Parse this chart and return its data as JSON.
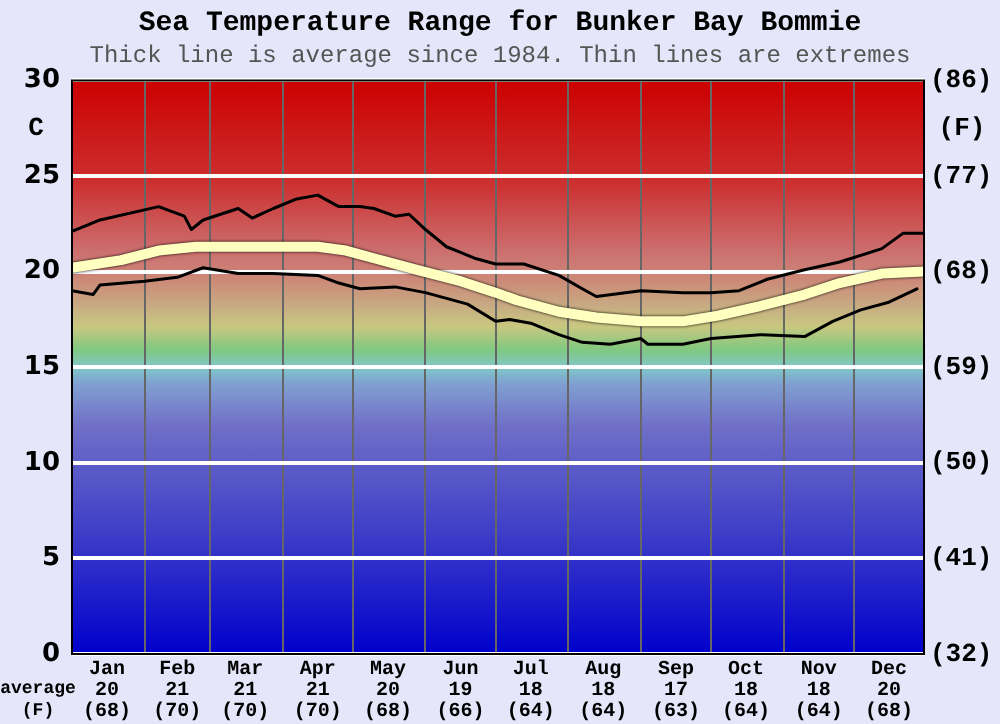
{
  "chart_data": {
    "type": "line",
    "title": "Sea Temperature Range for Bunker Bay Bommie",
    "subtitle": "Thick line is average since 1984. Thin lines are extremes",
    "ylabel": "C",
    "y2label": "(F)",
    "annotations": [
      "average (F)"
    ],
    "xlim": [
      "--01-01",
      "--12-31"
    ],
    "xticks": [
      {
        "value": "--01-01",
        "label": null
      },
      {
        "value": "--01-16",
        "label": "Jan\n20\n(68)"
      },
      {
        "value": "--02-01",
        "label": null
      },
      {
        "value": "--02-15",
        "label": "Feb\n21\n(70)"
      },
      {
        "value": "--03-01",
        "label": null
      },
      {
        "value": "--03-16",
        "label": "Mar\n21\n(70)"
      },
      {
        "value": "--04-01",
        "label": null
      },
      {
        "value": "--04-16",
        "label": "Apr\n21\n(70)"
      },
      {
        "value": "--05-01",
        "label": null
      },
      {
        "value": "--05-16",
        "label": "May\n20\n(68)"
      },
      {
        "value": "--06-01",
        "label": null
      },
      {
        "value": "--06-16",
        "label": "Jun\n19\n(66)"
      },
      {
        "value": "--07-01",
        "label": null
      },
      {
        "value": "--07-16",
        "label": "Jul\n18\n(64)"
      },
      {
        "value": "--08-01",
        "label": null
      },
      {
        "value": "--08-16",
        "label": "Aug\n18\n(64)"
      },
      {
        "value": "--09-01",
        "label": null
      },
      {
        "value": "--09-16",
        "label": "Sep\n17\n(63)"
      },
      {
        "value": "--10-01",
        "label": null
      },
      {
        "value": "--10-16",
        "label": "Oct\n18\n(64)"
      },
      {
        "value": "--11-01",
        "label": null
      },
      {
        "value": "--11-16",
        "label": "Nov\n18\n(64)"
      },
      {
        "value": "--12-01",
        "label": null
      },
      {
        "value": "--12-16",
        "label": "Dec\n20\n(68)"
      },
      {
        "value": "--12-31",
        "label": null
      }
    ],
    "ylim": [
      0,
      30
    ],
    "yticks": [
      0,
      5,
      10,
      15,
      20,
      25,
      30
    ],
    "y2lim": [
      32,
      86
    ],
    "y2ticks": [
      {
        "value": 32,
        "label": "(32)"
      },
      {
        "value": 41,
        "label": "(41)"
      },
      {
        "value": 50,
        "label": "(50)"
      },
      {
        "value": 59,
        "label": "(59)"
      },
      {
        "value": 68,
        "label": "(68)"
      },
      {
        "value": 77,
        "label": "(77)"
      },
      {
        "value": 86,
        "label": "(86)"
      }
    ],
    "grid": true,
    "legend": false,
    "marker": "none",
    "line_style": "solid",
    "series": [
      {
        "color": "#000000",
        "x": [
          "--01-01",
          "--01-13",
          "--02-07",
          "--02-18",
          "--02-21",
          "--02-26",
          "--03-13",
          "--03-19",
          "--03-28",
          "--04-07",
          "--04-16",
          "--04-25",
          "--05-04",
          "--05-10",
          "--05-19",
          "--05-25",
          "--06-01",
          "--06-10",
          "--06-16",
          "--06-22",
          "--07-01",
          "--07-13",
          "--07-28",
          "--08-07",
          "--08-13",
          "--09-01",
          "--09-19",
          "--10-01",
          "--10-13",
          "--10-25",
          "--11-10",
          "--11-25",
          "--12-13",
          "--12-22",
          "--12-31"
        ],
        "values": [
          22.1,
          22.7,
          23.4,
          22.9,
          22.2,
          22.7,
          23.3,
          22.8,
          23.3,
          23.8,
          24.0,
          23.4,
          23.4,
          23.3,
          22.9,
          23.0,
          22.2,
          21.3,
          21.0,
          20.7,
          20.4,
          20.4,
          19.8,
          19.1,
          18.7,
          19.0,
          18.9,
          18.9,
          19.0,
          19.6,
          20.1,
          20.5,
          21.2,
          22.0,
          22.0
        ]
      },
      {
        "color": "#ffffc0",
        "x": [
          "--01-01",
          "--01-22",
          "--02-07",
          "--02-23",
          "--03-13",
          "--03-28",
          "--04-16",
          "--04-28",
          "--05-10",
          "--05-28",
          "--06-16",
          "--07-01",
          "--07-10",
          "--07-28",
          "--08-13",
          "--09-01",
          "--09-19",
          "--10-04",
          "--10-22",
          "--11-10",
          "--11-25",
          "--12-13",
          "--12-31"
        ],
        "values": [
          20.2,
          20.6,
          21.1,
          21.3,
          21.3,
          21.3,
          21.3,
          21.1,
          20.7,
          20.1,
          19.5,
          18.9,
          18.5,
          17.9,
          17.6,
          17.4,
          17.4,
          17.7,
          18.2,
          18.8,
          19.4,
          19.9,
          20.0
        ]
      },
      {
        "color": "#000000",
        "x": [
          "--01-01",
          "--01-10",
          "--01-13",
          "--02-01",
          "--02-15",
          "--02-26",
          "--03-13",
          "--03-28",
          "--04-16",
          "--04-25",
          "--05-04",
          "--05-19",
          "--06-01",
          "--06-19",
          "--07-01",
          "--07-07",
          "--07-16",
          "--07-28",
          "--08-07",
          "--08-19",
          "--09-01",
          "--09-04",
          "--09-19",
          "--10-01",
          "--10-22",
          "--11-10",
          "--11-22",
          "--12-04",
          "--12-16",
          "--12-28"
        ],
        "values": [
          19.0,
          18.8,
          19.3,
          19.5,
          19.7,
          20.2,
          19.9,
          19.9,
          19.8,
          19.4,
          19.1,
          19.2,
          18.9,
          18.3,
          17.4,
          17.5,
          17.3,
          16.7,
          16.3,
          16.2,
          16.5,
          16.2,
          16.2,
          16.5,
          16.7,
          16.6,
          17.4,
          18.0,
          18.4,
          19.1
        ]
      }
    ]
  }
}
